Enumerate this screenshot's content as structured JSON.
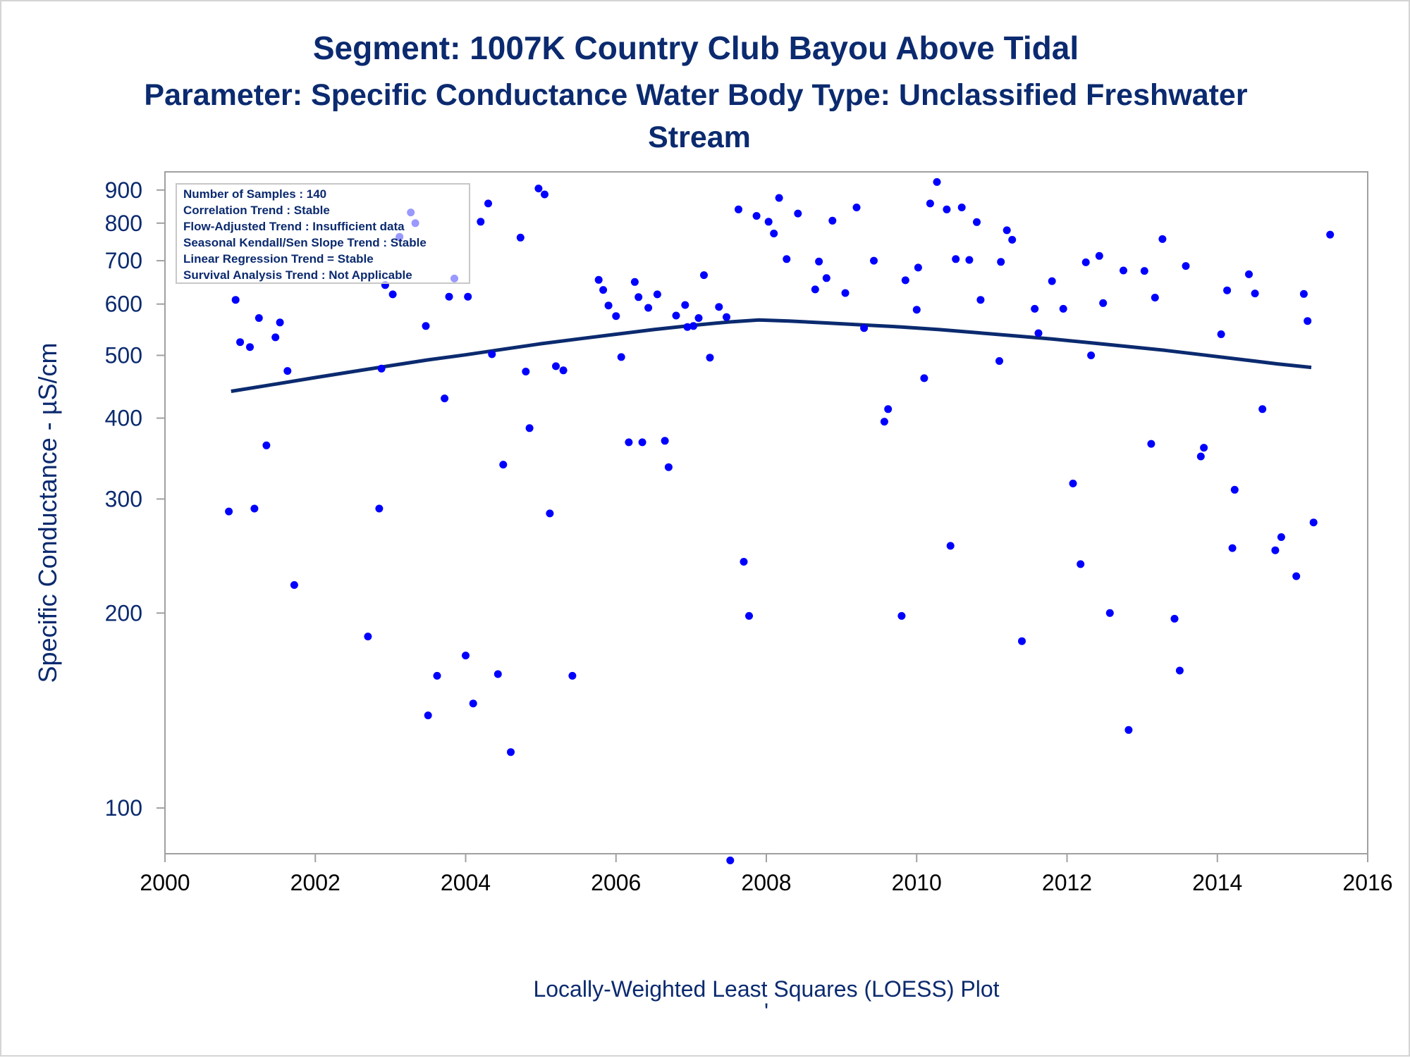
{
  "titles": {
    "line1": "Segment: 1007K  Country Club Bayou Above Tidal",
    "line2": "Parameter: Specific Conductance   Water Body Type: Unclassified Freshwater",
    "line3": "Stream"
  },
  "stats_box": [
    "Number of Samples : 140",
    "Correlation Trend : Stable",
    "Flow-Adjusted Trend : Insufficient data",
    "Seasonal Kendall/Sen Slope Trend : Stable",
    "Linear Regression Trend = Stable",
    "Survival Analysis Trend : Not Applicable"
  ],
  "footnote": "Locally-Weighted Least Squares (LOESS) Plot",
  "footnote_mark": "'",
  "colors": {
    "text": "#0b2a6f",
    "points": "#0000ff",
    "loess": "#0b2a6f",
    "frame": "#a0a0a0"
  },
  "chart_data": {
    "type": "scatter",
    "title": "Segment: 1007K  Country Club Bayou Above Tidal",
    "ylabel": "Specific Conductance -  µS/cm",
    "xlabel": "",
    "y_scale": "log",
    "xlim": [
      2000,
      2016
    ],
    "ylim": [
      85,
      960
    ],
    "grid": false,
    "x_ticks": [
      2000,
      2002,
      2004,
      2006,
      2008,
      2010,
      2012,
      2014,
      2016
    ],
    "x_tick_labels": [
      "2000",
      "2002",
      "2004",
      "2006",
      "2008",
      "2010",
      "2012",
      "2014",
      "2016"
    ],
    "y_ticks": [
      100,
      200,
      300,
      400,
      500,
      600,
      700,
      800,
      900
    ],
    "y_tick_labels": [
      "100",
      "200",
      "300",
      "400",
      "500",
      "600",
      "700",
      "800",
      "900"
    ],
    "series": [
      {
        "kind": "points",
        "x": [
          2000.85,
          2000.94,
          2001.0,
          2001.13,
          2001.19,
          2001.25,
          2001.35,
          2001.47,
          2001.53,
          2001.63,
          2001.72,
          2002.7,
          2002.85,
          2002.88,
          2002.93,
          2003.03,
          2003.12,
          2003.27,
          2003.33,
          2003.47,
          2003.5,
          2003.62,
          2003.72,
          2003.78,
          2003.85,
          2004.0,
          2004.03,
          2004.1,
          2004.2,
          2004.3,
          2004.35,
          2004.43,
          2004.5,
          2004.6,
          2004.73,
          2004.8,
          2004.85,
          2004.97,
          2005.05,
          2005.12,
          2005.2,
          2005.3,
          2005.42,
          2005.77,
          2005.83,
          2005.9,
          2006.0,
          2006.07,
          2006.17,
          2006.25,
          2006.3,
          2006.35,
          2006.43,
          2006.55,
          2006.65,
          2006.7,
          2006.8,
          2006.92,
          2006.95,
          2007.03,
          2007.1,
          2007.17,
          2007.25,
          2007.37,
          2007.47,
          2007.52,
          2007.63,
          2007.7,
          2007.77,
          2007.87,
          2008.03,
          2008.1,
          2008.17,
          2008.27,
          2008.42,
          2008.65,
          2008.7,
          2008.8,
          2008.88,
          2009.05,
          2009.2,
          2009.3,
          2009.43,
          2009.57,
          2009.62,
          2009.8,
          2009.85,
          2010.0,
          2010.02,
          2010.1,
          2010.18,
          2010.27,
          2010.4,
          2010.45,
          2010.52,
          2010.6,
          2010.7,
          2010.8,
          2010.85,
          2011.1,
          2011.12,
          2011.2,
          2011.27,
          2011.4,
          2011.57,
          2011.62,
          2011.8,
          2011.95,
          2012.08,
          2012.18,
          2012.25,
          2012.32,
          2012.43,
          2012.48,
          2012.57,
          2012.75,
          2012.82,
          2013.03,
          2013.12,
          2013.17,
          2013.27,
          2013.43,
          2013.5,
          2013.58,
          2013.78,
          2013.82,
          2014.05,
          2014.13,
          2014.2,
          2014.23,
          2014.42,
          2014.5,
          2014.6,
          2014.77,
          2014.85,
          2015.05,
          2015.15,
          2015.2,
          2015.28,
          2015.5
        ],
        "y": [
          287,
          609,
          524,
          515,
          290,
          571,
          363,
          533,
          562,
          473,
          221,
          184,
          290,
          477,
          642,
          621,
          762,
          831,
          800,
          555,
          139,
          160,
          429,
          616,
          657,
          172,
          616,
          145,
          804,
          858,
          502,
          161,
          339,
          122,
          760,
          472,
          386,
          905,
          886,
          285,
          481,
          474,
          160,
          654,
          631,
          597,
          575,
          497,
          367,
          649,
          615,
          367,
          592,
          621,
          369,
          336,
          576,
          598,
          553,
          555,
          571,
          665,
          496,
          594,
          573,
          83,
          840,
          240,
          198,
          821,
          804,
          771,
          875,
          704,
          828,
          632,
          698,
          658,
          807,
          624,
          846,
          551,
          700,
          395,
          413,
          198,
          653,
          588,
          683,
          461,
          858,
          926,
          840,
          254,
          704,
          846,
          702,
          803,
          609,
          490,
          697,
          780,
          754,
          181,
          590,
          541,
          651,
          590,
          317,
          238,
          696,
          500,
          712,
          602,
          200,
          676,
          132,
          675,
          365,
          614,
          756,
          196,
          163,
          687,
          349,
          360,
          539,
          630,
          252,
          310,
          667,
          623,
          413,
          250,
          262,
          228,
          622,
          565,
          276,
          768
        ]
      },
      {
        "kind": "line",
        "name": "",
        "x": [
          2000.88,
          2001.5,
          2002.0,
          2002.5,
          2003.0,
          2003.5,
          2004.0,
          2004.5,
          2005.0,
          2005.5,
          2006.0,
          2006.5,
          2007.0,
          2007.5,
          2007.9,
          2008.3,
          2008.8,
          2009.3,
          2009.8,
          2010.3,
          2010.8,
          2011.3,
          2011.8,
          2012.3,
          2012.8,
          2013.3,
          2013.8,
          2014.3,
          2014.8,
          2015.25
        ],
        "y": [
          440,
          452,
          462,
          472,
          482,
          492,
          501,
          511,
          521,
          530,
          539,
          548,
          556,
          563,
          567,
          565,
          561,
          557,
          553,
          548,
          542,
          536,
          530,
          523,
          516,
          509,
          501,
          493,
          485,
          479
        ]
      }
    ]
  }
}
